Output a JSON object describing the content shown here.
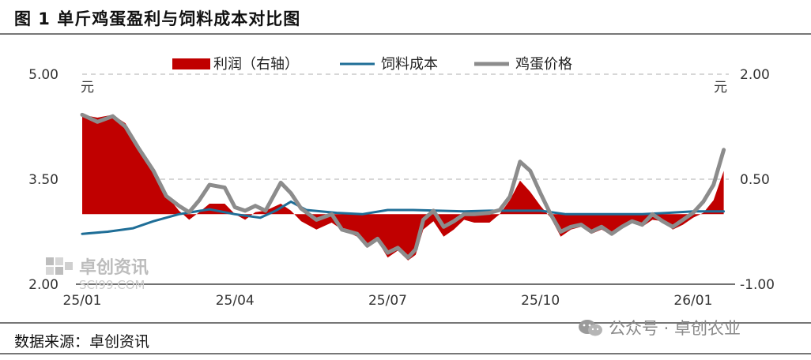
{
  "figure_title": "图 1 单斤鸡蛋盈利与饲料成本对比图",
  "source": "数据来源：卓创资讯",
  "watermark_cn": "卓创资讯",
  "watermark_en": "SCI99.COM",
  "wechat_label": "公众号 · 卓创农业",
  "colors": {
    "profit": "#c00000",
    "feed": "#1f6e97",
    "egg": "#8c8c8c",
    "grid": "#bfbfbf"
  },
  "chart_data": {
    "type": "area+line",
    "title": "单斤鸡蛋盈利与饲料成本对比图",
    "left_axis": {
      "min": 2.0,
      "max": 5.0,
      "ticks": [
        2.0,
        3.5,
        5.0
      ],
      "tick_labels": [
        "2.00",
        "3.50",
        "5.00"
      ],
      "unit": "元"
    },
    "right_axis": {
      "min": -1.0,
      "max": 2.0,
      "ticks": [
        -1.0,
        0.5,
        2.0
      ],
      "tick_labels": [
        "-1.00",
        "0.50",
        "2.00"
      ],
      "unit": "元"
    },
    "x_ticks": [
      "25/01",
      "25/04",
      "25/07",
      "25/10",
      "26/01"
    ],
    "x_tick_months": [
      0,
      3,
      6,
      9,
      12
    ],
    "x_range_months": [
      0,
      12.7
    ],
    "grid": "horizontal dashed",
    "legend_position": "top",
    "series": [
      {
        "name": "利润（右轴）",
        "kind": "area",
        "axis": "right",
        "points": [
          [
            0.0,
            1.42
          ],
          [
            0.3,
            1.38
          ],
          [
            0.6,
            1.42
          ],
          [
            0.85,
            1.3
          ],
          [
            1.1,
            1.0
          ],
          [
            1.4,
            0.62
          ],
          [
            1.65,
            0.28
          ],
          [
            1.9,
            0.05
          ],
          [
            2.1,
            -0.08
          ],
          [
            2.3,
            0.03
          ],
          [
            2.5,
            0.15
          ],
          [
            2.8,
            0.15
          ],
          [
            3.0,
            0.0
          ],
          [
            3.2,
            -0.08
          ],
          [
            3.4,
            0.03
          ],
          [
            3.6,
            0.05
          ],
          [
            3.9,
            0.15
          ],
          [
            4.1,
            0.05
          ],
          [
            4.3,
            -0.1
          ],
          [
            4.6,
            -0.22
          ],
          [
            4.9,
            -0.12
          ],
          [
            5.1,
            -0.22
          ],
          [
            5.4,
            -0.32
          ],
          [
            5.6,
            -0.48
          ],
          [
            5.8,
            -0.38
          ],
          [
            6.0,
            -0.62
          ],
          [
            6.2,
            -0.52
          ],
          [
            6.4,
            -0.66
          ],
          [
            6.55,
            -0.58
          ],
          [
            6.7,
            -0.22
          ],
          [
            6.9,
            -0.1
          ],
          [
            7.1,
            -0.32
          ],
          [
            7.3,
            -0.22
          ],
          [
            7.5,
            -0.08
          ],
          [
            7.7,
            -0.12
          ],
          [
            8.0,
            -0.12
          ],
          [
            8.2,
            0.0
          ],
          [
            8.4,
            0.2
          ],
          [
            8.6,
            0.48
          ],
          [
            8.8,
            0.32
          ],
          [
            9.0,
            0.12
          ],
          [
            9.2,
            -0.05
          ],
          [
            9.4,
            -0.32
          ],
          [
            9.6,
            -0.22
          ],
          [
            9.8,
            -0.18
          ],
          [
            10.0,
            -0.28
          ],
          [
            10.2,
            -0.22
          ],
          [
            10.4,
            -0.3
          ],
          [
            10.6,
            -0.2
          ],
          [
            10.8,
            -0.12
          ],
          [
            11.0,
            -0.18
          ],
          [
            11.2,
            -0.08
          ],
          [
            11.4,
            -0.1
          ],
          [
            11.6,
            -0.22
          ],
          [
            11.8,
            -0.15
          ],
          [
            12.0,
            -0.05
          ],
          [
            12.2,
            0.02
          ],
          [
            12.4,
            0.2
          ],
          [
            12.6,
            0.62
          ]
        ]
      },
      {
        "name": "饲料成本",
        "kind": "line",
        "axis": "left",
        "points": [
          [
            0.0,
            2.72
          ],
          [
            0.5,
            2.75
          ],
          [
            1.0,
            2.8
          ],
          [
            1.4,
            2.9
          ],
          [
            1.9,
            3.0
          ],
          [
            2.5,
            3.07
          ],
          [
            3.0,
            3.0
          ],
          [
            3.5,
            2.95
          ],
          [
            3.8,
            3.05
          ],
          [
            4.1,
            3.18
          ],
          [
            4.4,
            3.06
          ],
          [
            5.0,
            3.02
          ],
          [
            5.5,
            3.0
          ],
          [
            6.0,
            3.06
          ],
          [
            6.5,
            3.06
          ],
          [
            7.0,
            3.05
          ],
          [
            7.5,
            3.04
          ],
          [
            8.0,
            3.05
          ],
          [
            8.5,
            3.05
          ],
          [
            9.0,
            3.05
          ],
          [
            9.5,
            3.0
          ],
          [
            10.0,
            3.0
          ],
          [
            10.5,
            3.0
          ],
          [
            11.0,
            3.0
          ],
          [
            11.5,
            3.02
          ],
          [
            12.0,
            3.04
          ],
          [
            12.6,
            3.04
          ]
        ]
      },
      {
        "name": "鸡蛋价格",
        "kind": "line",
        "axis": "left",
        "points": [
          [
            0.0,
            4.42
          ],
          [
            0.3,
            4.32
          ],
          [
            0.6,
            4.4
          ],
          [
            0.85,
            4.25
          ],
          [
            1.1,
            3.95
          ],
          [
            1.4,
            3.62
          ],
          [
            1.65,
            3.26
          ],
          [
            1.9,
            3.12
          ],
          [
            2.1,
            3.03
          ],
          [
            2.3,
            3.2
          ],
          [
            2.5,
            3.42
          ],
          [
            2.8,
            3.38
          ],
          [
            3.0,
            3.1
          ],
          [
            3.2,
            3.05
          ],
          [
            3.4,
            3.12
          ],
          [
            3.6,
            3.05
          ],
          [
            3.9,
            3.45
          ],
          [
            4.1,
            3.3
          ],
          [
            4.3,
            3.08
          ],
          [
            4.6,
            2.92
          ],
          [
            4.9,
            3.0
          ],
          [
            5.1,
            2.78
          ],
          [
            5.4,
            2.72
          ],
          [
            5.6,
            2.55
          ],
          [
            5.8,
            2.65
          ],
          [
            6.0,
            2.45
          ],
          [
            6.2,
            2.52
          ],
          [
            6.4,
            2.38
          ],
          [
            6.55,
            2.5
          ],
          [
            6.7,
            2.92
          ],
          [
            6.9,
            3.05
          ],
          [
            7.1,
            2.82
          ],
          [
            7.3,
            2.9
          ],
          [
            7.5,
            3.0
          ],
          [
            7.7,
            3.0
          ],
          [
            8.0,
            3.02
          ],
          [
            8.2,
            3.06
          ],
          [
            8.4,
            3.25
          ],
          [
            8.6,
            3.75
          ],
          [
            8.8,
            3.62
          ],
          [
            9.0,
            3.3
          ],
          [
            9.2,
            3.0
          ],
          [
            9.4,
            2.75
          ],
          [
            9.6,
            2.82
          ],
          [
            9.8,
            2.85
          ],
          [
            10.0,
            2.75
          ],
          [
            10.2,
            2.82
          ],
          [
            10.4,
            2.72
          ],
          [
            10.6,
            2.82
          ],
          [
            10.8,
            2.9
          ],
          [
            11.0,
            2.85
          ],
          [
            11.2,
            3.0
          ],
          [
            11.4,
            2.9
          ],
          [
            11.6,
            2.82
          ],
          [
            11.8,
            2.92
          ],
          [
            12.0,
            3.02
          ],
          [
            12.2,
            3.18
          ],
          [
            12.4,
            3.42
          ],
          [
            12.6,
            3.92
          ]
        ]
      }
    ]
  }
}
